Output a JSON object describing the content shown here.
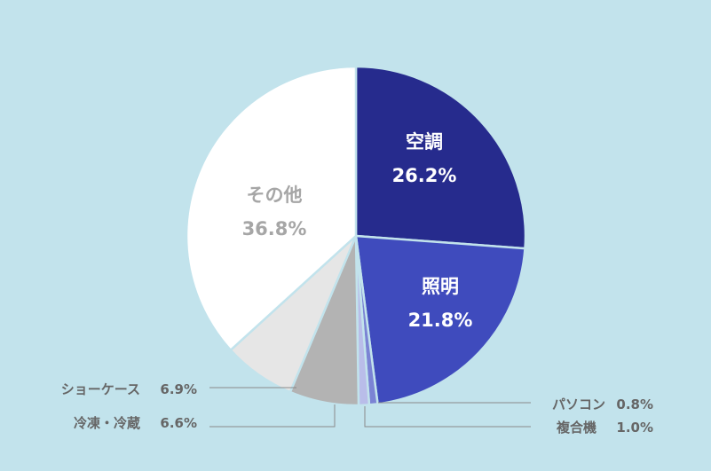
{
  "chart_data": {
    "type": "pie",
    "start_angle_deg": 0,
    "direction": "clockwise",
    "slices": [
      {
        "label": "空調",
        "value": 26.2,
        "value_label": "26.2%",
        "color": "#262b8d",
        "text_color": "#ffffff",
        "label_position": "inside"
      },
      {
        "label": "照明",
        "value": 21.8,
        "value_label": "21.8%",
        "color": "#3f4bbd",
        "text_color": "#ffffff",
        "label_position": "inside"
      },
      {
        "label": "パソコン",
        "value": 0.8,
        "value_label": "0.8%",
        "color": "#7b83d4",
        "text_color": "#666666",
        "label_position": "outside-right"
      },
      {
        "label": "複合機",
        "value": 1.0,
        "value_label": "1.0%",
        "color": "#b9bde9",
        "text_color": "#666666",
        "label_position": "outside-right"
      },
      {
        "label": "冷凍・冷蔵",
        "value": 6.6,
        "value_label": "6.6%",
        "color": "#b3b3b3",
        "text_color": "#666666",
        "label_position": "outside-left"
      },
      {
        "label": "ショーケース",
        "value": 6.9,
        "value_label": "6.9%",
        "color": "#e6e6e6",
        "text_color": "#666666",
        "label_position": "outside-left"
      },
      {
        "label": "その他",
        "value": 36.8,
        "value_label": "36.8%",
        "color": "#ffffff",
        "text_color": "#a6a6a6",
        "label_position": "inside"
      }
    ],
    "background_color": "#c2e3ec",
    "leader_line_color": "#8a8a8a"
  }
}
